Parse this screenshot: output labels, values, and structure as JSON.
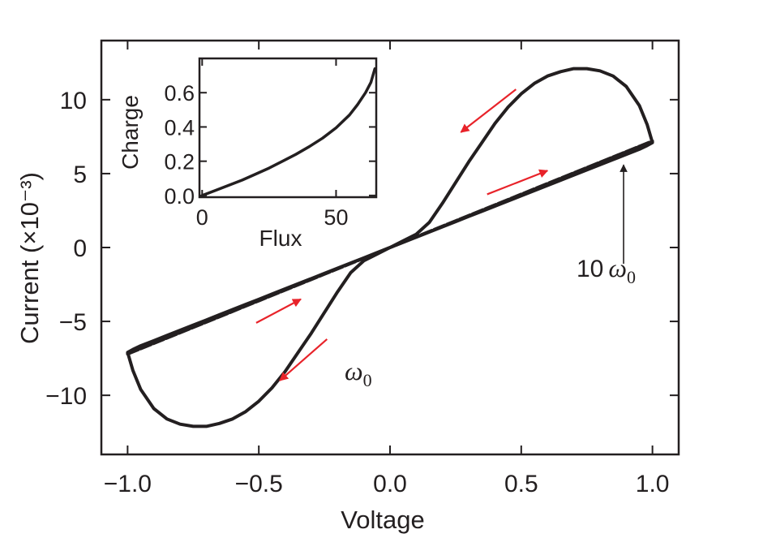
{
  "chart_data": [
    {
      "type": "line",
      "title": "",
      "xlabel": "Voltage",
      "ylabel": "Current (×10⁻³)",
      "xlim": [
        -1.1,
        1.1
      ],
      "ylim": [
        -14,
        14
      ],
      "xticks": [
        -1.0,
        -0.5,
        0.0,
        0.5,
        1.0
      ],
      "xtick_labels": [
        "−1.0",
        "−0.5",
        "0.0",
        "0.5",
        "1.0"
      ],
      "yticks": [
        -10,
        -5,
        0,
        5,
        10
      ],
      "ytick_labels": [
        "−10",
        "−5",
        "0",
        "5",
        "10"
      ],
      "grid": false,
      "series": [
        {
          "name": "ω0",
          "style": "solid",
          "color": "#231f20",
          "x": [
            0.0,
            0.05,
            0.1,
            0.15,
            0.2,
            0.25,
            0.3,
            0.35,
            0.4,
            0.45,
            0.5,
            0.55,
            0.6,
            0.65,
            0.7,
            0.75,
            0.8,
            0.85,
            0.9,
            0.95,
            0.98,
            1.0,
            0.98,
            0.95,
            0.9,
            0.85,
            0.8,
            0.75,
            0.7,
            0.65,
            0.6,
            0.55,
            0.5,
            0.45,
            0.4,
            0.35,
            0.3,
            0.25,
            0.2,
            0.15,
            0.1,
            0.05,
            0.0,
            -0.05,
            -0.1,
            -0.15,
            -0.2,
            -0.25,
            -0.3,
            -0.35,
            -0.4,
            -0.45,
            -0.5,
            -0.55,
            -0.6,
            -0.65,
            -0.7,
            -0.75,
            -0.8,
            -0.85,
            -0.9,
            -0.95,
            -0.98,
            -1.0,
            -0.98,
            -0.95,
            -0.9,
            -0.85,
            -0.8,
            -0.75,
            -0.7,
            -0.65,
            -0.6,
            -0.55,
            -0.5,
            -0.45,
            -0.4,
            -0.35,
            -0.3,
            -0.25,
            -0.2,
            -0.15,
            -0.1,
            -0.05,
            0.0
          ],
          "y": [
            0.0,
            0.35,
            0.7,
            1.05,
            1.4,
            1.75,
            2.1,
            2.45,
            2.8,
            3.15,
            3.5,
            3.85,
            4.2,
            4.55,
            4.9,
            5.25,
            5.6,
            5.95,
            6.3,
            6.65,
            6.9,
            7.1,
            8.3,
            9.6,
            10.9,
            11.6,
            11.95,
            12.1,
            12.1,
            11.9,
            11.6,
            11.1,
            10.4,
            9.5,
            8.4,
            7.1,
            5.8,
            4.4,
            3.0,
            1.7,
            0.9,
            0.45,
            0.0,
            -0.35,
            -0.7,
            -1.05,
            -1.4,
            -1.75,
            -2.1,
            -2.45,
            -2.8,
            -3.15,
            -3.5,
            -3.85,
            -4.2,
            -4.55,
            -4.9,
            -5.25,
            -5.6,
            -5.95,
            -6.3,
            -6.65,
            -6.9,
            -7.1,
            -8.3,
            -9.6,
            -10.9,
            -11.6,
            -11.95,
            -12.1,
            -12.1,
            -11.9,
            -11.6,
            -11.1,
            -10.4,
            -9.5,
            -8.4,
            -7.1,
            -5.8,
            -4.4,
            -3.0,
            -1.7,
            -0.9,
            -0.45,
            0.0
          ]
        },
        {
          "name": "10 ω0",
          "style": "dashed",
          "color": "#231f20",
          "x": [
            -1.0,
            -0.75,
            -0.5,
            -0.25,
            0.0,
            0.25,
            0.5,
            0.75,
            1.0
          ],
          "y": [
            -7.2,
            -5.4,
            -3.6,
            -1.8,
            0.0,
            1.8,
            3.6,
            5.4,
            7.2
          ]
        }
      ],
      "annotations": {
        "omega0_label": "ω",
        "omega0_sub": "0",
        "ten_omega0_num": "10",
        "ten_omega0_label": "ω",
        "ten_omega0_sub": "0",
        "arrow_color": "#e8232a",
        "direction_arrows": [
          {
            "from": [
              0.48,
              10.7
            ],
            "to": [
              0.27,
              7.8
            ]
          },
          {
            "from": [
              0.37,
              3.6
            ],
            "to": [
              0.6,
              5.2
            ]
          },
          {
            "from": [
              -0.51,
              -5.1
            ],
            "to": [
              -0.34,
              -3.5
            ]
          },
          {
            "from": [
              -0.24,
              -6.2
            ],
            "to": [
              -0.42,
              -9.0
            ]
          }
        ],
        "pointer": {
          "from": [
            0.89,
            -1.1
          ],
          "to": [
            0.89,
            5.7
          ]
        }
      }
    },
    {
      "type": "line",
      "title": "",
      "xlabel": "Flux",
      "ylabel": "Charge",
      "xlim": [
        -1,
        65
      ],
      "ylim": [
        -0.01,
        0.8
      ],
      "xticks": [
        0,
        50
      ],
      "xtick_labels": [
        "0",
        "50"
      ],
      "yticks": [
        0.0,
        0.2,
        0.4,
        0.6
      ],
      "ytick_labels": [
        "0.0",
        "0.2",
        "0.4",
        "0.6"
      ],
      "grid": false,
      "series": [
        {
          "name": "",
          "color": "#231f20",
          "x": [
            0,
            5,
            10,
            15,
            20,
            25,
            30,
            35,
            40,
            45,
            50,
            55,
            58,
            61,
            63,
            64.5
          ],
          "y": [
            0.0,
            0.03,
            0.06,
            0.09,
            0.125,
            0.16,
            0.2,
            0.24,
            0.285,
            0.335,
            0.395,
            0.47,
            0.53,
            0.6,
            0.66,
            0.74
          ]
        }
      ]
    }
  ]
}
